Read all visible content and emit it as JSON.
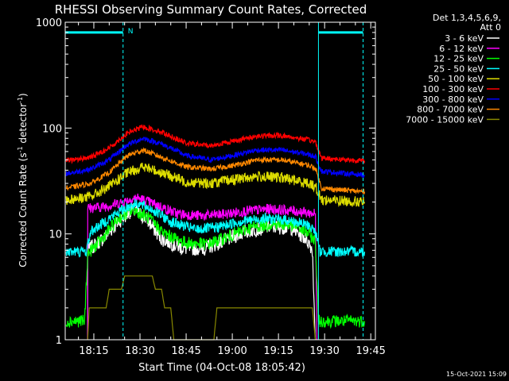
{
  "chart_data": {
    "type": "line",
    "title": "RHESSI Observing Summary Count Rates, Corrected",
    "ylabel_parts": [
      "Corrected Count Rate (s",
      "-1",
      " detector",
      "-1",
      ")"
    ],
    "xlabel": "Start Time (04-Oct-08 18:05:42)",
    "footer": "15-Oct-2021 15:09",
    "ylim": [
      1,
      1000
    ],
    "yscale": "log",
    "xlim": [
      "18:05:42",
      "19:46:30"
    ],
    "y_ticks": [
      {
        "value": 1,
        "label": "1"
      },
      {
        "value": 10,
        "label": "10"
      },
      {
        "value": 100,
        "label": "100"
      },
      {
        "value": 1000,
        "label": "1000"
      }
    ],
    "x_ticks": [
      {
        "time": "18:15",
        "label": "18:15"
      },
      {
        "time": "18:30",
        "label": "18:30"
      },
      {
        "time": "18:45",
        "label": "18:45"
      },
      {
        "time": "19:00",
        "label": "19:00"
      },
      {
        "time": "19:15",
        "label": "19:15"
      },
      {
        "time": "19:30",
        "label": "19:30"
      },
      {
        "time": "19:45",
        "label": "19:45"
      }
    ],
    "legend_header": [
      "Det 1,3,4,5,6,9,",
      "Att 0"
    ],
    "legend_placement": "right",
    "series": [
      {
        "name": "3 - 6 keV",
        "color": "#ffffff",
        "noise": 0.07,
        "points": [
          [
            "18:13:00",
            1.0
          ],
          [
            "18:13:01",
            7.0
          ],
          [
            "18:18:00",
            9.0
          ],
          [
            "18:23:00",
            13.0
          ],
          [
            "18:27:30",
            17.0
          ],
          [
            "18:32:00",
            14.0
          ],
          [
            "18:37:00",
            9.0
          ],
          [
            "18:44:00",
            7.3
          ],
          [
            "18:51:00",
            7.3
          ],
          [
            "18:57:00",
            8.5
          ],
          [
            "19:04:00",
            10.5
          ],
          [
            "19:12:00",
            11.7
          ],
          [
            "19:19:00",
            11.5
          ],
          [
            "19:24:00",
            9.0
          ],
          [
            "19:26:00",
            7.2
          ],
          [
            "19:27:00",
            1.0
          ]
        ]
      },
      {
        "name": "6 - 12 keV",
        "color": "#ff00ff",
        "noise": 0.05,
        "points": [
          [
            "18:13:00",
            1.0
          ],
          [
            "18:13:01",
            17.5
          ],
          [
            "18:18:00",
            18.0
          ],
          [
            "18:23:00",
            19.5
          ],
          [
            "18:29:00",
            22.0
          ],
          [
            "18:35:00",
            19.0
          ],
          [
            "18:42:00",
            15.5
          ],
          [
            "18:50:00",
            14.8
          ],
          [
            "18:57:00",
            15.3
          ],
          [
            "19:05:00",
            16.5
          ],
          [
            "19:12:00",
            17.2
          ],
          [
            "19:20:00",
            16.5
          ],
          [
            "19:27:00",
            15.5
          ],
          [
            "19:27:30",
            1.0
          ]
        ]
      },
      {
        "name": "12 - 25 keV",
        "color": "#00ff00",
        "noise": 0.06,
        "points": [
          [
            "18:06:00",
            1.5
          ],
          [
            "18:12:00",
            1.5
          ],
          [
            "18:13:00",
            6.5
          ],
          [
            "18:17:00",
            8.5
          ],
          [
            "18:23:00",
            14.0
          ],
          [
            "18:28:00",
            17.0
          ],
          [
            "18:33:00",
            14.0
          ],
          [
            "18:38:00",
            10.0
          ],
          [
            "18:45:00",
            8.2
          ],
          [
            "18:52:00",
            8.0
          ],
          [
            "18:59:00",
            9.5
          ],
          [
            "19:06:00",
            11.5
          ],
          [
            "19:13:00",
            12.5
          ],
          [
            "19:20:00",
            12.0
          ],
          [
            "19:25:00",
            10.0
          ],
          [
            "19:27:00",
            8.5
          ],
          [
            "19:28:00",
            1.5
          ],
          [
            "19:43:00",
            1.5
          ]
        ]
      },
      {
        "name": "25 - 50 keV",
        "color": "#00ffff",
        "noise": 0.05,
        "points": [
          [
            "18:06:00",
            6.8
          ],
          [
            "18:12:30",
            6.8
          ],
          [
            "18:14:00",
            10.5
          ],
          [
            "18:20:00",
            14.0
          ],
          [
            "18:25:00",
            17.5
          ],
          [
            "18:29:00",
            19.5
          ],
          [
            "18:34:00",
            17.0
          ],
          [
            "18:40:00",
            13.0
          ],
          [
            "18:48:00",
            11.0
          ],
          [
            "18:55:00",
            11.5
          ],
          [
            "19:02:00",
            13.0
          ],
          [
            "19:10:00",
            14.0
          ],
          [
            "19:18:00",
            13.5
          ],
          [
            "19:25:00",
            12.0
          ],
          [
            "19:27:00",
            10.5
          ],
          [
            "19:28:30",
            6.8
          ],
          [
            "19:43:00",
            6.8
          ]
        ]
      },
      {
        "name": "50 - 100 keV",
        "color": "#dddd00",
        "noise": 0.05,
        "points": [
          [
            "18:06:00",
            21.0
          ],
          [
            "18:14:00",
            22.5
          ],
          [
            "18:20:00",
            28.0
          ],
          [
            "18:26:00",
            38.0
          ],
          [
            "18:31:00",
            43.0
          ],
          [
            "18:37:00",
            38.0
          ],
          [
            "18:45:00",
            31.0
          ],
          [
            "18:53:00",
            30.0
          ],
          [
            "19:00:00",
            32.5
          ],
          [
            "19:08:00",
            35.0
          ],
          [
            "19:16:00",
            34.0
          ],
          [
            "19:25:00",
            30.0
          ],
          [
            "19:27:00",
            28.0
          ],
          [
            "19:29:00",
            21.0
          ],
          [
            "19:43:00",
            20.0
          ]
        ]
      },
      {
        "name": "100 - 300 keV",
        "color": "#ff0000",
        "noise": 0.025,
        "points": [
          [
            "18:06:00",
            49.0
          ],
          [
            "18:14:00",
            53.0
          ],
          [
            "18:20:00",
            65.0
          ],
          [
            "18:26:00",
            90.0
          ],
          [
            "18:31:00",
            103.0
          ],
          [
            "18:37:00",
            92.0
          ],
          [
            "18:45:00",
            72.0
          ],
          [
            "18:53:00",
            68.0
          ],
          [
            "19:00:00",
            75.0
          ],
          [
            "19:08:00",
            84.0
          ],
          [
            "19:16:00",
            85.0
          ],
          [
            "19:24:00",
            78.0
          ],
          [
            "19:27:00",
            74.0
          ],
          [
            "19:29:00",
            52.0
          ],
          [
            "19:43:00",
            49.0
          ]
        ]
      },
      {
        "name": "300 - 800 keV",
        "color": "#0000ff",
        "noise": 0.025,
        "points": [
          [
            "18:06:00",
            37.0
          ],
          [
            "18:14:00",
            41.0
          ],
          [
            "18:20:00",
            50.0
          ],
          [
            "18:26:00",
            70.0
          ],
          [
            "18:31:00",
            80.0
          ],
          [
            "18:37:00",
            71.0
          ],
          [
            "18:45:00",
            55.0
          ],
          [
            "18:53:00",
            50.0
          ],
          [
            "19:00:00",
            55.0
          ],
          [
            "19:08:00",
            62.0
          ],
          [
            "19:16:00",
            62.0
          ],
          [
            "19:24:00",
            57.0
          ],
          [
            "19:27:00",
            54.0
          ],
          [
            "19:29:00",
            39.0
          ],
          [
            "19:43:00",
            36.0
          ]
        ]
      },
      {
        "name": "800 - 7000 keV",
        "color": "#ff8800",
        "noise": 0.025,
        "points": [
          [
            "18:06:00",
            27.0
          ],
          [
            "18:14:00",
            30.0
          ],
          [
            "18:20:00",
            38.0
          ],
          [
            "18:26:00",
            55.0
          ],
          [
            "18:31:00",
            62.0
          ],
          [
            "18:37:00",
            53.0
          ],
          [
            "18:45:00",
            43.0
          ],
          [
            "18:53:00",
            41.0
          ],
          [
            "19:00:00",
            44.0
          ],
          [
            "19:08:00",
            50.0
          ],
          [
            "19:16:00",
            50.0
          ],
          [
            "19:24:00",
            45.0
          ],
          [
            "19:27:00",
            42.0
          ],
          [
            "19:29:00",
            27.0
          ],
          [
            "19:43:00",
            25.0
          ]
        ]
      },
      {
        "name": "7000 - 15000 keV",
        "color": "#888800",
        "noise": 0.0,
        "points": [
          [
            "18:13:00",
            1.0
          ],
          [
            "18:13:30",
            2.0
          ],
          [
            "18:19:00",
            2.0
          ],
          [
            "18:20:00",
            3.0
          ],
          [
            "18:24:00",
            3.0
          ],
          [
            "18:25:00",
            4.0
          ],
          [
            "18:34:00",
            4.0
          ],
          [
            "18:35:00",
            3.0
          ],
          [
            "18:37:00",
            3.0
          ],
          [
            "18:38:00",
            2.0
          ],
          [
            "18:40:00",
            2.0
          ],
          [
            "18:41:00",
            1.0
          ],
          [
            "18:54:00",
            1.0
          ],
          [
            "18:55:00",
            2.0
          ],
          [
            "19:26:00",
            2.0
          ],
          [
            "19:27:00",
            1.0
          ]
        ]
      }
    ],
    "markers": [
      {
        "type": "solid",
        "time": "19:28:00",
        "color": "#00ffff"
      },
      {
        "type": "dashed",
        "time": "18:24:30",
        "color": "#00ffff"
      },
      {
        "type": "dashed",
        "time": "19:42:30",
        "color": "#00ffff"
      },
      {
        "type": "bar",
        "from": "18:05:42",
        "to": "18:24:30",
        "value": 800,
        "color": "#00ffff",
        "label": "N"
      },
      {
        "type": "bar",
        "from": "19:28:00",
        "to": "19:42:30",
        "value": 800,
        "color": "#00ffff",
        "label": ""
      }
    ]
  }
}
